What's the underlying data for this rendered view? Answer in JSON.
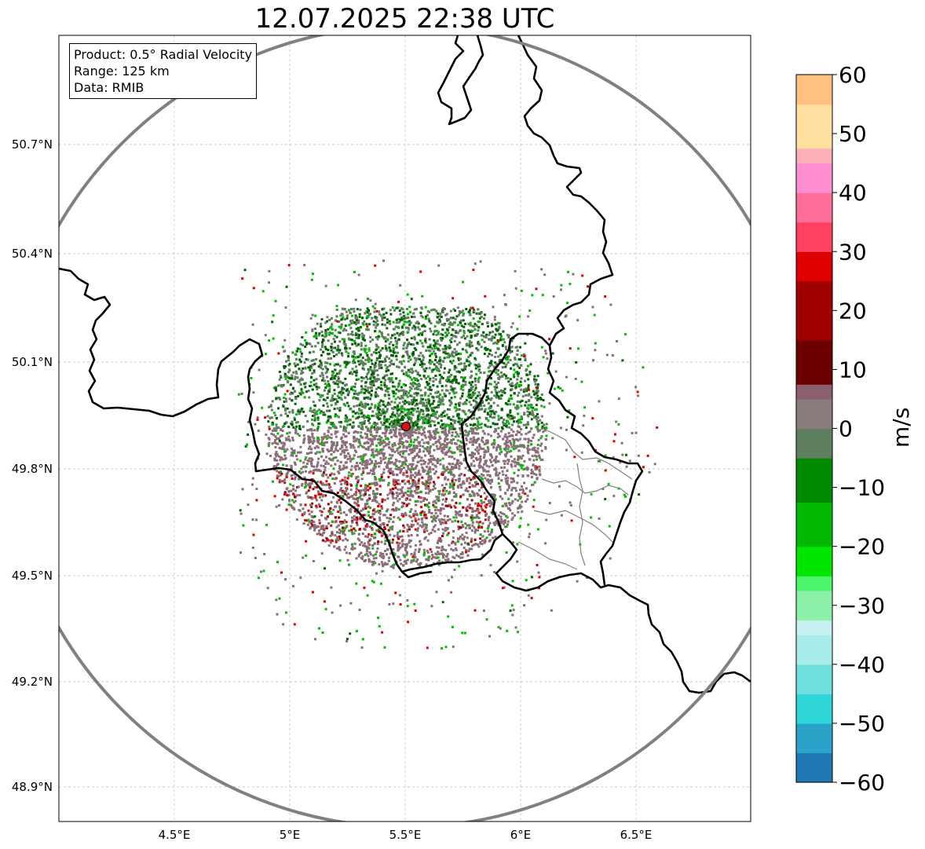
{
  "title": "12.07.2025 22:38 UTC",
  "info_box": {
    "product": "Product: 0.5° Radial Velocity",
    "range": "Range: 125 km",
    "data": "Data: RMIB"
  },
  "axes": {
    "lat_ticks": [
      "50.7°N",
      "50.4°N",
      "50.1°N",
      "49.8°N",
      "49.5°N",
      "49.2°N",
      "48.9°N"
    ],
    "lon_ticks": [
      "4.5°E",
      "5°E",
      "5.5°E",
      "6°E",
      "6.5°E"
    ]
  },
  "colorbar": {
    "unit": "m/s",
    "tick_labels": [
      "60",
      "50",
      "40",
      "30",
      "20",
      "10",
      "0",
      "−10",
      "−20",
      "−30",
      "−40",
      "−50",
      "−60"
    ],
    "min": -60,
    "max": 60,
    "stops": [
      [
        "#1f77b4",
        -60
      ],
      [
        "#2ba3c9",
        -55
      ],
      [
        "#2ed6d8",
        -50
      ],
      [
        "#6ee0e0",
        -45
      ],
      [
        "#a8ebeb",
        -40
      ],
      [
        "#c5f0ef",
        -35
      ],
      [
        "#8cf0a8",
        -32
      ],
      [
        "#4df56d",
        -28
      ],
      [
        "#00e600",
        -25
      ],
      [
        "#00b800",
        -20
      ],
      [
        "#008a00",
        -12
      ],
      [
        "#006400",
        -6
      ],
      [
        "#5f7f5f",
        -4
      ],
      [
        "#8a7c7c",
        0
      ],
      [
        "#8a6070",
        5
      ],
      [
        "#6b0000",
        8
      ],
      [
        "#a00000",
        15
      ],
      [
        "#e00000",
        24
      ],
      [
        "#ff4060",
        30
      ],
      [
        "#ff6d9a",
        36
      ],
      [
        "#ff8fd0",
        40
      ],
      [
        "#ffb0b8",
        44
      ],
      [
        "#ffe0a0",
        48
      ],
      [
        "#ffc080",
        54
      ],
      [
        "#ff9b55",
        60
      ]
    ]
  },
  "radar": {
    "site_marker_color": "#dd1111",
    "range_ring_color": "#808080",
    "colors": {
      "approaching_strong": "#006400",
      "approaching": "#00c000",
      "near_zero_green": "#5f7f5f",
      "near_zero_mauve": "#8a6e78",
      "receding": "#a00000",
      "receding_strong": "#e00000"
    }
  }
}
